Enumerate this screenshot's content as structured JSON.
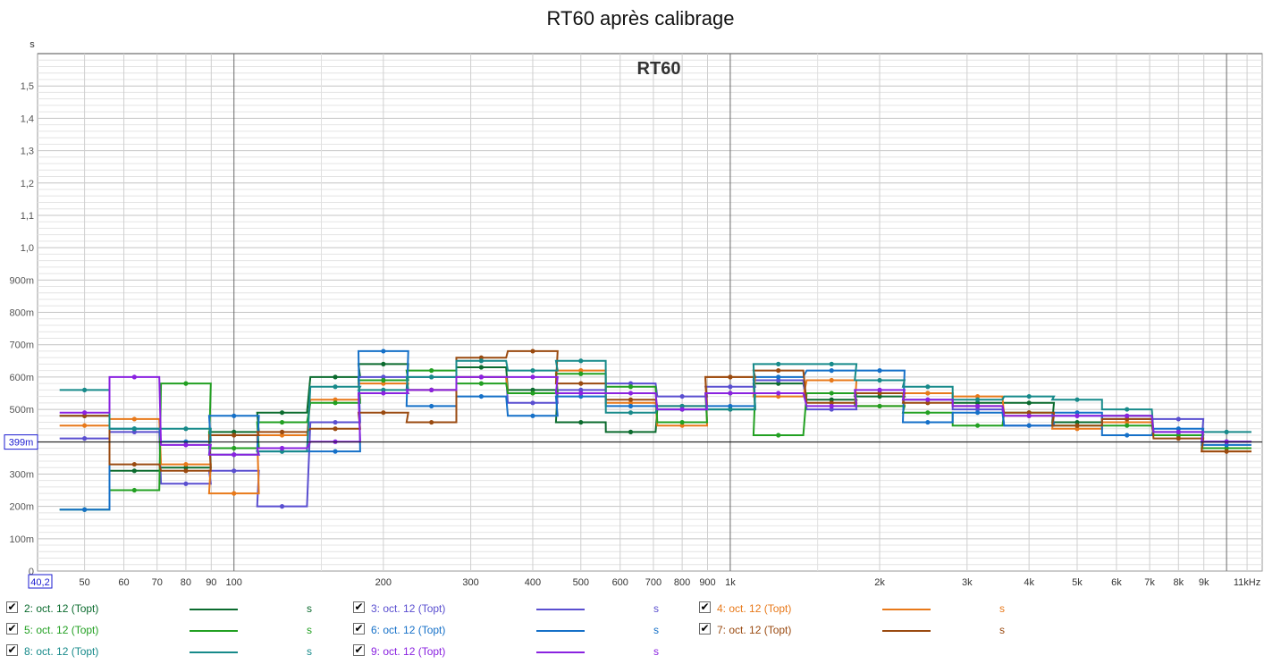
{
  "title": "RT60 après calibrage",
  "legend_items": [
    {
      "label": "2: oct. 12 (Topt)",
      "unit": "s",
      "color": "#0b6b2e"
    },
    {
      "label": "3: oct. 12 (Topt)",
      "unit": "s",
      "color": "#5a4fd0"
    },
    {
      "label": "4: oct. 12 (Topt)",
      "unit": "s",
      "color": "#e8791a"
    },
    {
      "label": "5: oct. 12 (Topt)",
      "unit": "s",
      "color": "#22a022"
    },
    {
      "label": "6: oct. 12 (Topt)",
      "unit": "s",
      "color": "#1570c8"
    },
    {
      "label": "7: oct. 12 (Topt)",
      "unit": "s",
      "color": "#9a4a10"
    },
    {
      "label": "8: oct. 12 (Topt)",
      "unit": "s",
      "color": "#178a8a"
    },
    {
      "label": "9: oct. 12 (Topt)",
      "unit": "s",
      "color": "#8a22e0"
    }
  ],
  "chart_data": {
    "type": "line",
    "title": "RT60 après calibrage",
    "subtitle": "RT60",
    "ylabel": "s",
    "xlabel": "",
    "x_scale": "log",
    "xlim": [
      40.2,
      11800
    ],
    "ylim": [
      0,
      1.6
    ],
    "x_range_start_label": "40,2",
    "cursor_label": "399m",
    "cursor_value": 0.399,
    "y_ticks": [
      0,
      0.1,
      0.2,
      0.3,
      0.4,
      0.5,
      0.6,
      0.7,
      0.8,
      0.9,
      1.0,
      1.1,
      1.2,
      1.3,
      1.4,
      1.5
    ],
    "y_tick_labels": [
      "0",
      "100m",
      "200m",
      "300m",
      "",
      "500m",
      "600m",
      "700m",
      "800m",
      "900m",
      "1,0",
      "1,1",
      "1,2",
      "1,3",
      "1,4",
      "1,5"
    ],
    "x_ticks": [
      50,
      60,
      70,
      80,
      90,
      100,
      200,
      300,
      400,
      500,
      600,
      700,
      800,
      900,
      1000,
      2000,
      3000,
      4000,
      5000,
      6000,
      7000,
      8000,
      9000,
      11000
    ],
    "x_tick_labels": [
      "50",
      "60",
      "70",
      "80",
      "90",
      "100",
      "200",
      "300",
      "400",
      "500",
      "600",
      "700",
      "800",
      "900",
      "1k",
      "2k",
      "3k",
      "4k",
      "5k",
      "6k",
      "7k",
      "8k",
      "9k",
      "11kHz"
    ],
    "x": [
      50,
      63,
      80,
      100,
      125,
      160,
      200,
      250,
      315,
      400,
      500,
      630,
      800,
      1000,
      1250,
      1600,
      2000,
      2500,
      3150,
      4000,
      5000,
      6300,
      8000,
      10000
    ],
    "series": [
      {
        "name": "2: oct. 12 (Topt)",
        "color": "#0b6b2e",
        "values": [
          0.48,
          0.31,
          0.32,
          0.43,
          0.49,
          0.6,
          0.64,
          0.56,
          0.63,
          0.56,
          0.46,
          0.43,
          0.5,
          0.5,
          0.58,
          0.53,
          0.54,
          0.55,
          0.52,
          0.52,
          0.46,
          0.48,
          0.42,
          0.4
        ]
      },
      {
        "name": "3: oct. 12 (Topt)",
        "color": "#5a4fd0",
        "values": [
          0.41,
          0.43,
          0.27,
          0.31,
          0.2,
          0.46,
          0.6,
          0.6,
          0.6,
          0.52,
          0.56,
          0.58,
          0.54,
          0.57,
          0.59,
          0.5,
          0.55,
          0.53,
          0.5,
          0.45,
          0.48,
          0.47,
          0.47,
          0.4
        ]
      },
      {
        "name": "4: oct. 12 (Topt)",
        "color": "#e8791a",
        "values": [
          0.45,
          0.47,
          0.33,
          0.24,
          0.42,
          0.53,
          0.58,
          0.56,
          0.6,
          0.55,
          0.62,
          0.52,
          0.45,
          0.6,
          0.54,
          0.59,
          0.51,
          0.55,
          0.54,
          0.48,
          0.44,
          0.46,
          0.42,
          0.37
        ]
      },
      {
        "name": "5: oct. 12 (Topt)",
        "color": "#22a022",
        "values": [
          0.19,
          0.25,
          0.58,
          0.38,
          0.46,
          0.52,
          0.59,
          0.62,
          0.58,
          0.55,
          0.61,
          0.57,
          0.46,
          0.55,
          0.42,
          0.55,
          0.51,
          0.49,
          0.45,
          0.49,
          0.45,
          0.45,
          0.42,
          0.38
        ]
      },
      {
        "name": "6: oct. 12 (Topt)",
        "color": "#1570c8",
        "values": [
          0.19,
          0.44,
          0.4,
          0.48,
          0.37,
          0.37,
          0.68,
          0.51,
          0.54,
          0.48,
          0.54,
          0.51,
          0.5,
          0.51,
          0.6,
          0.62,
          0.62,
          0.46,
          0.49,
          0.45,
          0.49,
          0.42,
          0.44,
          0.39
        ]
      },
      {
        "name": "7: oct. 12 (Topt)",
        "color": "#9a4a10",
        "values": [
          0.48,
          0.33,
          0.31,
          0.42,
          0.43,
          0.44,
          0.49,
          0.46,
          0.66,
          0.68,
          0.58,
          0.53,
          0.51,
          0.6,
          0.62,
          0.52,
          0.55,
          0.52,
          0.51,
          0.49,
          0.45,
          0.47,
          0.41,
          0.37
        ]
      },
      {
        "name": "8: oct. 12 (Topt)",
        "color": "#178a8a",
        "values": [
          0.56,
          0.44,
          0.44,
          0.36,
          0.37,
          0.57,
          0.56,
          0.6,
          0.65,
          0.62,
          0.65,
          0.49,
          0.51,
          0.5,
          0.64,
          0.64,
          0.59,
          0.57,
          0.53,
          0.54,
          0.53,
          0.5,
          0.43,
          0.43
        ]
      },
      {
        "name": "9: oct. 12 (Topt)",
        "color": "#8a22e0",
        "values": [
          0.49,
          0.6,
          0.39,
          0.36,
          0.38,
          0.4,
          0.55,
          0.56,
          0.6,
          0.6,
          0.55,
          0.55,
          0.5,
          0.55,
          0.55,
          0.51,
          0.56,
          0.53,
          0.51,
          0.48,
          0.48,
          0.48,
          0.43,
          0.4
        ]
      }
    ]
  }
}
